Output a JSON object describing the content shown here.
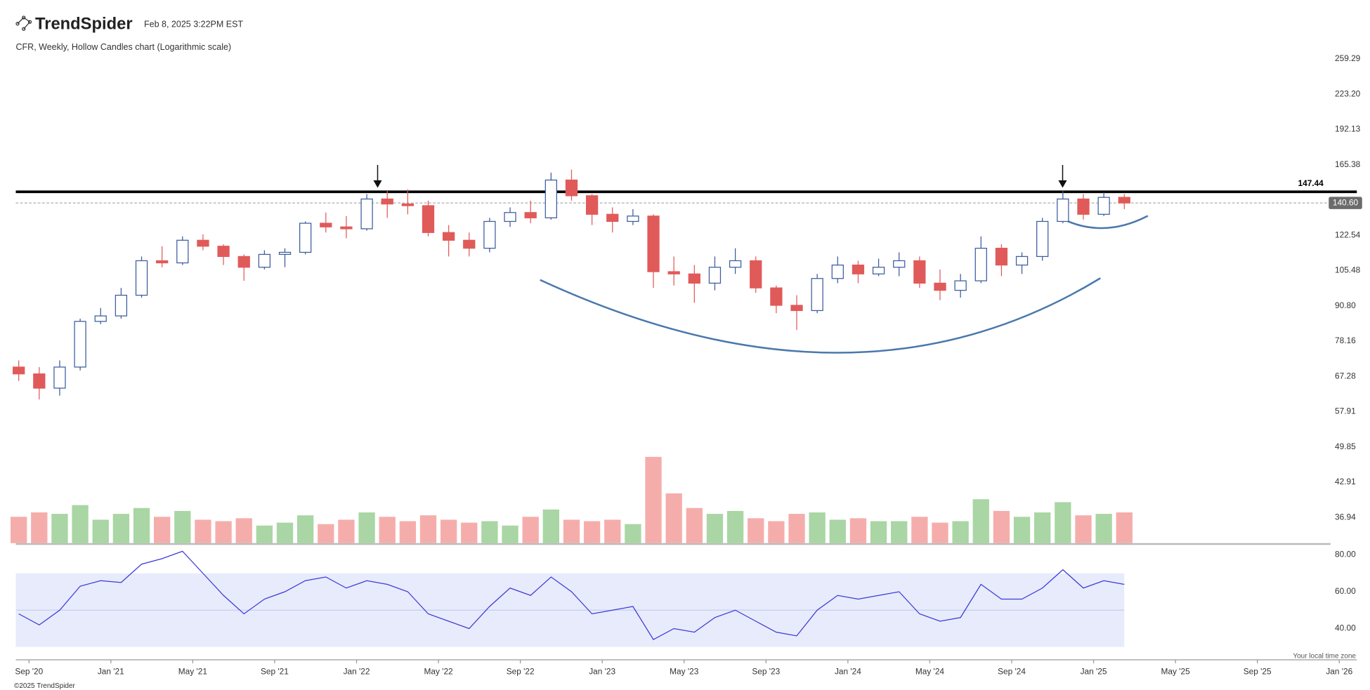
{
  "header": {
    "logo": "TrendSpider",
    "timestamp": "Feb 8, 2025 3:22PM EST"
  },
  "footer": {
    "timezone": "Your local time zone",
    "copyright": "©2025 TrendSpider"
  },
  "chart_data": [
    {
      "type": "candlestick",
      "title": "CFR, Weekly, Hollow Candles chart (Logarithmic scale)",
      "log_scale": true,
      "up_color": "#3d5c9e",
      "down_color": "#e05a5a",
      "x": [
        "2020-08",
        "2020-09",
        "2020-10",
        "2020-11",
        "2020-12",
        "2021-01",
        "2021-02",
        "2021-03",
        "2021-04",
        "2021-05",
        "2021-06",
        "2021-07",
        "2021-08",
        "2021-09",
        "2021-10",
        "2021-11",
        "2021-12",
        "2022-01",
        "2022-02",
        "2022-03",
        "2022-04",
        "2022-05",
        "2022-06",
        "2022-07",
        "2022-08",
        "2022-09",
        "2022-10",
        "2022-11",
        "2022-12",
        "2023-01",
        "2023-02",
        "2023-03",
        "2023-04",
        "2023-05",
        "2023-06",
        "2023-07",
        "2023-08",
        "2023-09",
        "2023-10",
        "2023-11",
        "2023-12",
        "2024-01",
        "2024-02",
        "2024-03",
        "2024-04",
        "2024-05",
        "2024-06",
        "2024-07",
        "2024-08",
        "2024-09",
        "2024-10",
        "2024-11",
        "2024-12",
        "2025-01",
        "2025-02"
      ],
      "open": [
        70,
        68,
        64,
        70,
        85,
        87,
        95,
        110,
        109,
        120,
        117,
        112,
        107,
        113,
        114,
        129,
        127,
        126,
        143,
        140,
        139,
        124,
        120,
        116,
        130,
        135,
        132,
        155,
        145,
        134,
        130,
        133,
        105,
        104,
        100,
        107,
        110,
        98,
        91,
        89,
        102,
        108,
        104,
        107,
        110,
        100,
        97,
        101,
        116,
        108,
        112,
        130,
        143,
        134,
        144
      ],
      "high": [
        72,
        70,
        72,
        86,
        90,
        98,
        112,
        117,
        122,
        123,
        118,
        113,
        115,
        116,
        130,
        135,
        133,
        146,
        148,
        149,
        142,
        128,
        124,
        132,
        138,
        142,
        160,
        162,
        146,
        138,
        137,
        134,
        112,
        108,
        112,
        116,
        112,
        99,
        95,
        104,
        112,
        110,
        111,
        114,
        112,
        106,
        104,
        122,
        118,
        114,
        132,
        148,
        146,
        147,
        146
      ],
      "low": [
        66,
        61,
        62,
        69,
        84,
        86,
        94,
        107,
        108,
        115,
        108,
        101,
        106,
        107,
        113,
        124,
        121,
        125,
        132,
        134,
        122,
        112,
        112,
        114,
        127,
        129,
        131,
        142,
        128,
        124,
        128,
        98,
        99,
        92,
        97,
        104,
        96,
        88,
        82,
        88,
        100,
        100,
        103,
        103,
        98,
        93,
        94,
        100,
        103,
        104,
        110,
        129,
        131,
        133,
        137
      ],
      "close": [
        68,
        64,
        70,
        85,
        87,
        95,
        110,
        109,
        120,
        117,
        112,
        107,
        113,
        114,
        129,
        127,
        126,
        143,
        140,
        139,
        124,
        120,
        116,
        130,
        135,
        132,
        155,
        145,
        134,
        130,
        133,
        105,
        104,
        100,
        107,
        110,
        98,
        91,
        89,
        102,
        108,
        104,
        107,
        110,
        100,
        97,
        101,
        116,
        108,
        112,
        130,
        143,
        134,
        144,
        140.6
      ],
      "xlim": [
        "2020-09",
        "2026-01"
      ],
      "xticks": [
        {
          "value": "2020-09",
          "label": "Sep '20"
        },
        {
          "value": "2021-01",
          "label": "Jan '21"
        },
        {
          "value": "2021-05",
          "label": "May '21"
        },
        {
          "value": "2021-09",
          "label": "Sep '21"
        },
        {
          "value": "2022-01",
          "label": "Jan '22"
        },
        {
          "value": "2022-05",
          "label": "May '22"
        },
        {
          "value": "2022-09",
          "label": "Sep '22"
        },
        {
          "value": "2023-01",
          "label": "Jan '23"
        },
        {
          "value": "2023-05",
          "label": "May '23"
        },
        {
          "value": "2023-09",
          "label": "Sep '23"
        },
        {
          "value": "2024-01",
          "label": "Jan '24"
        },
        {
          "value": "2024-05",
          "label": "May '24"
        },
        {
          "value": "2024-09",
          "label": "Sep '24"
        },
        {
          "value": "2025-01",
          "label": "Jan '25"
        },
        {
          "value": "2025-05",
          "label": "May '25"
        },
        {
          "value": "2025-09",
          "label": "Sep '25"
        },
        {
          "value": "2026-01",
          "label": "Jan '26"
        }
      ],
      "ylim": [
        33,
        287
      ],
      "yticks": [
        259.29,
        {
          "value": 223.2,
          "label": "223.20"
        },
        192.13,
        165.38,
        122.54,
        105.48,
        {
          "value": 90.8,
          "label": "90.80"
        },
        78.16,
        67.28,
        57.91,
        49.85,
        42.91,
        36.94
      ],
      "resistance": 147.44,
      "last_price": {
        "value": 140.6,
        "label": "140.60"
      }
    },
    {
      "type": "bar",
      "up_color": "#a9d6a4",
      "down_color": "#f5adab",
      "values": [
        1.8,
        2.1,
        2.0,
        2.6,
        1.6,
        2.0,
        2.4,
        1.8,
        2.2,
        1.6,
        1.5,
        1.7,
        1.2,
        1.4,
        1.9,
        1.3,
        1.6,
        2.1,
        1.8,
        1.5,
        1.9,
        1.6,
        1.4,
        1.5,
        1.2,
        1.8,
        2.3,
        1.6,
        1.5,
        1.6,
        1.3,
        5.9,
        3.4,
        2.4,
        2.0,
        2.2,
        1.7,
        1.5,
        2.0,
        2.1,
        1.6,
        1.7,
        1.5,
        1.5,
        1.8,
        1.4,
        1.5,
        3.0,
        2.2,
        1.8,
        2.1,
        2.8,
        1.9,
        2.0,
        2.1
      ],
      "ylim": [
        0,
        6
      ]
    },
    {
      "type": "line",
      "color": "#3b3bd6",
      "band": [
        30,
        70
      ],
      "band_color": "#e8ebfb",
      "midline": 50,
      "values": [
        48,
        42,
        50,
        63,
        66,
        65,
        75,
        78,
        82,
        70,
        58,
        48,
        56,
        60,
        66,
        68,
        62,
        66,
        64,
        60,
        48,
        44,
        40,
        52,
        62,
        58,
        68,
        60,
        48,
        50,
        52,
        34,
        40,
        38,
        46,
        50,
        44,
        38,
        36,
        50,
        58,
        56,
        58,
        60,
        48,
        44,
        46,
        64,
        56,
        56,
        62,
        72,
        62,
        66,
        64
      ],
      "ylim": [
        23,
        85
      ],
      "yticks": [
        {
          "value": 80,
          "label": "80.00"
        },
        {
          "value": 60,
          "label": "60.00"
        },
        {
          "value": 40,
          "label": "40.00"
        }
      ]
    }
  ]
}
